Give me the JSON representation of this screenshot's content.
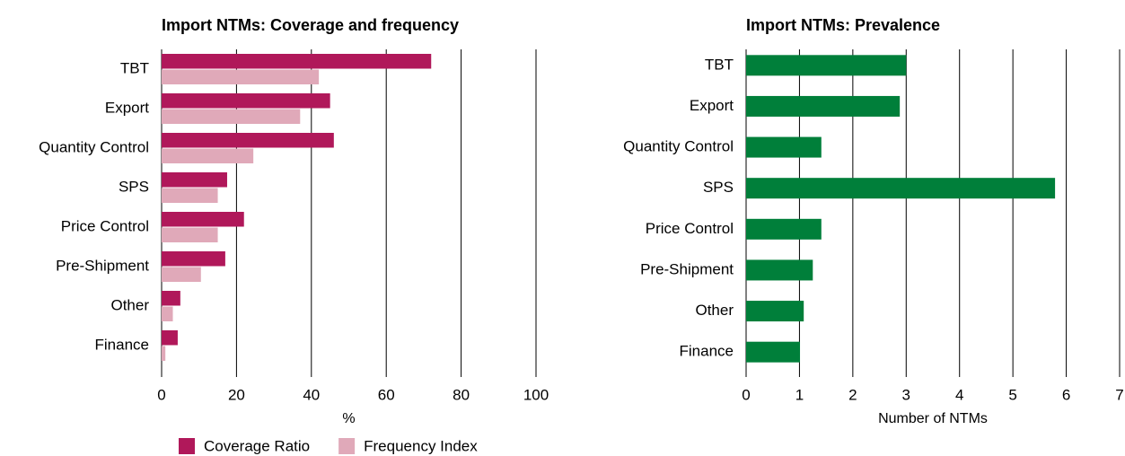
{
  "chart_data": [
    {
      "type": "bar",
      "title": "Import NTMs: Coverage and frequency",
      "xlabel": "%",
      "categories": [
        "TBT",
        "Export",
        "Quantity Control",
        "SPS",
        "Price Control",
        "Pre-Shipment",
        "Other",
        "Finance"
      ],
      "series": [
        {
          "name": "Coverage Ratio",
          "color": "#b0185a",
          "values": [
            72,
            45,
            46,
            17.5,
            22,
            17,
            5,
            4.3
          ]
        },
        {
          "name": "Frequency Index",
          "color": "#e0a9b9",
          "values": [
            42,
            37,
            24.5,
            15,
            15,
            10.5,
            3,
            1
          ]
        }
      ],
      "xlim": [
        0,
        100
      ],
      "xticks": [
        0,
        20,
        40,
        60,
        80,
        100
      ],
      "grid": true,
      "legend": "bottom"
    },
    {
      "type": "bar",
      "title": "Import NTMs: Prevalence",
      "xlabel": "Number of NTMs",
      "categories": [
        "TBT",
        "Export",
        "Quantity Control",
        "SPS",
        "Price Control",
        "Pre-Shipment",
        "Other",
        "Finance"
      ],
      "series": [
        {
          "name": null,
          "color": "#007f3a",
          "values": [
            3,
            2.88,
            1.41,
            5.79,
            1.41,
            1.25,
            1.08,
            1.01
          ]
        }
      ],
      "xlim": [
        0,
        7
      ],
      "xticks": [
        0,
        1,
        2,
        3,
        4,
        5,
        6,
        7
      ],
      "grid": true
    }
  ]
}
